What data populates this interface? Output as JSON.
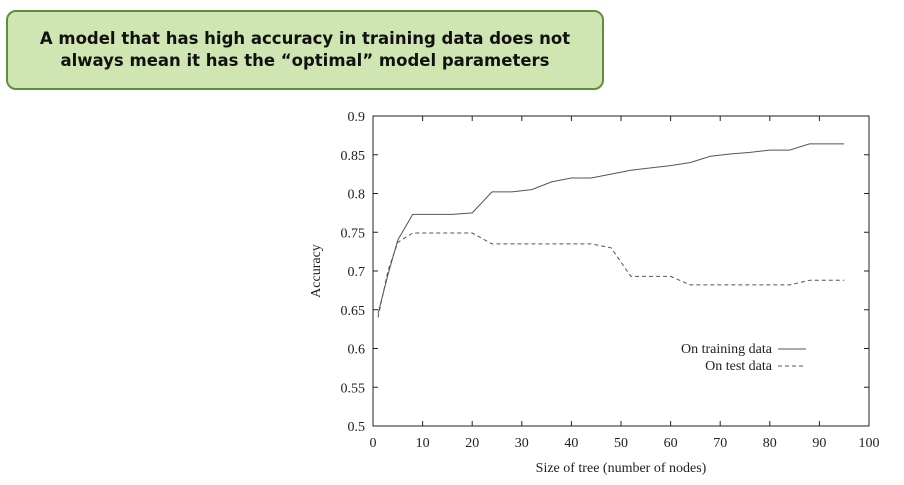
{
  "callout": {
    "line1": "A model that has high accuracy in training data does not",
    "line2": "always mean it has the “optimal” model  parameters"
  },
  "chart_data": {
    "type": "line",
    "xlabel": "Size of tree (number of nodes)",
    "ylabel": "Accuracy",
    "xlim": [
      0,
      100
    ],
    "ylim": [
      0.5,
      0.9
    ],
    "xticks": [
      0,
      10,
      20,
      30,
      40,
      50,
      60,
      70,
      80,
      90,
      100
    ],
    "yticks": [
      0.5,
      0.55,
      0.6,
      0.65,
      0.7,
      0.75,
      0.8,
      0.85,
      0.9
    ],
    "grid": false,
    "legend": "lower-right",
    "series": [
      {
        "name": "On training data",
        "style": "solid",
        "color": "#555555",
        "x": [
          1,
          3,
          5,
          8,
          12,
          16,
          20,
          24,
          28,
          32,
          36,
          40,
          44,
          48,
          52,
          56,
          60,
          64,
          68,
          72,
          76,
          80,
          84,
          88,
          92,
          95
        ],
        "y": [
          0.645,
          0.695,
          0.74,
          0.773,
          0.773,
          0.773,
          0.775,
          0.802,
          0.802,
          0.805,
          0.815,
          0.82,
          0.82,
          0.825,
          0.83,
          0.833,
          0.836,
          0.84,
          0.848,
          0.851,
          0.853,
          0.856,
          0.856,
          0.864,
          0.864,
          0.864
        ]
      },
      {
        "name": "On test data",
        "style": "dashed",
        "color": "#555555",
        "x": [
          1,
          3,
          5,
          8,
          12,
          16,
          20,
          24,
          28,
          32,
          36,
          40,
          44,
          48,
          52,
          56,
          60,
          64,
          68,
          72,
          76,
          80,
          84,
          88,
          92,
          95
        ],
        "y": [
          0.64,
          0.7,
          0.737,
          0.749,
          0.749,
          0.749,
          0.749,
          0.735,
          0.735,
          0.735,
          0.735,
          0.735,
          0.735,
          0.73,
          0.693,
          0.693,
          0.693,
          0.682,
          0.682,
          0.682,
          0.682,
          0.682,
          0.682,
          0.688,
          0.688,
          0.688
        ]
      }
    ]
  }
}
